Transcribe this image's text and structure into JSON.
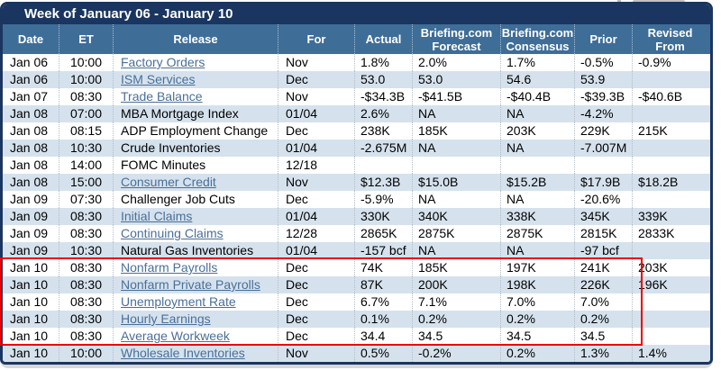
{
  "table": {
    "title": "Week of January 06 - January 10",
    "columns": [
      {
        "key": "date",
        "label": "Date"
      },
      {
        "key": "et",
        "label": "ET"
      },
      {
        "key": "release",
        "label": "Release"
      },
      {
        "key": "for",
        "label": "For"
      },
      {
        "key": "actual",
        "label": "Actual"
      },
      {
        "key": "forecast",
        "label": "Briefing.com Forecast"
      },
      {
        "key": "consensus",
        "label": "Briefing.com Consensus"
      },
      {
        "key": "prior",
        "label": "Prior"
      },
      {
        "key": "revised_from",
        "label": "Revised From"
      }
    ],
    "rows": [
      {
        "date": "Jan 06",
        "et": "10:00",
        "release": "Factory Orders",
        "is_link": true,
        "for": "Nov",
        "actual": "1.8%",
        "forecast": "2.0%",
        "consensus": "1.7%",
        "prior": "-0.5%",
        "revised_from": "-0.9%"
      },
      {
        "date": "Jan 06",
        "et": "10:00",
        "release": "ISM Services",
        "is_link": true,
        "for": "Dec",
        "actual": "53.0",
        "forecast": "53.0",
        "consensus": "54.6",
        "prior": "53.9",
        "revised_from": ""
      },
      {
        "date": "Jan 07",
        "et": "08:30",
        "release": "Trade Balance",
        "is_link": true,
        "for": "Nov",
        "actual": "-$34.3B",
        "forecast": "-$41.5B",
        "consensus": "-$40.4B",
        "prior": "-$39.3B",
        "revised_from": "-$40.6B"
      },
      {
        "date": "Jan 08",
        "et": "07:00",
        "release": "MBA Mortgage Index",
        "is_link": false,
        "for": "01/04",
        "actual": "2.6%",
        "forecast": "NA",
        "consensus": "NA",
        "prior": "-4.2%",
        "revised_from": ""
      },
      {
        "date": "Jan 08",
        "et": "08:15",
        "release": "ADP Employment Change",
        "is_link": false,
        "for": "Dec",
        "actual": "238K",
        "forecast": "185K",
        "consensus": "203K",
        "prior": "229K",
        "revised_from": "215K"
      },
      {
        "date": "Jan 08",
        "et": "10:30",
        "release": "Crude Inventories",
        "is_link": false,
        "for": "01/04",
        "actual": "-2.675M",
        "forecast": "NA",
        "consensus": "NA",
        "prior": "-7.007M",
        "revised_from": ""
      },
      {
        "date": "Jan 08",
        "et": "14:00",
        "release": "FOMC Minutes",
        "is_link": false,
        "for": "12/18",
        "actual": "",
        "forecast": "",
        "consensus": "",
        "prior": "",
        "revised_from": ""
      },
      {
        "date": "Jan 08",
        "et": "15:00",
        "release": "Consumer Credit",
        "is_link": true,
        "for": "Nov",
        "actual": "$12.3B",
        "forecast": "$15.0B",
        "consensus": "$15.2B",
        "prior": "$17.9B",
        "revised_from": "$18.2B"
      },
      {
        "date": "Jan 09",
        "et": "07:30",
        "release": "Challenger Job Cuts",
        "is_link": false,
        "for": "Dec",
        "actual": "-5.9%",
        "forecast": "NA",
        "consensus": "NA",
        "prior": "-20.6%",
        "revised_from": ""
      },
      {
        "date": "Jan 09",
        "et": "08:30",
        "release": "Initial Claims",
        "is_link": true,
        "for": "01/04",
        "actual": "330K",
        "forecast": "340K",
        "consensus": "338K",
        "prior": "345K",
        "revised_from": "339K"
      },
      {
        "date": "Jan 09",
        "et": "08:30",
        "release": "Continuing Claims",
        "is_link": true,
        "for": "12/28",
        "actual": "2865K",
        "forecast": "2875K",
        "consensus": "2875K",
        "prior": "2815K",
        "revised_from": "2833K"
      },
      {
        "date": "Jan 09",
        "et": "10:30",
        "release": "Natural Gas Inventories",
        "is_link": false,
        "for": "01/04",
        "actual": "-157 bcf",
        "forecast": "NA",
        "consensus": "NA",
        "prior": "-97 bcf",
        "revised_from": ""
      },
      {
        "date": "Jan 10",
        "et": "08:30",
        "release": "Nonfarm Payrolls",
        "is_link": true,
        "for": "Dec",
        "actual": "74K",
        "forecast": "185K",
        "consensus": "197K",
        "prior": "241K",
        "revised_from": "203K"
      },
      {
        "date": "Jan 10",
        "et": "08:30",
        "release": "Nonfarm Private Payrolls",
        "is_link": true,
        "for": "Dec",
        "actual": "87K",
        "forecast": "200K",
        "consensus": "198K",
        "prior": "226K",
        "revised_from": "196K"
      },
      {
        "date": "Jan 10",
        "et": "08:30",
        "release": "Unemployment Rate",
        "is_link": true,
        "for": "Dec",
        "actual": "6.7%",
        "forecast": "7.1%",
        "consensus": "7.0%",
        "prior": "7.0%",
        "revised_from": ""
      },
      {
        "date": "Jan 10",
        "et": "08:30",
        "release": "Hourly Earnings",
        "is_link": true,
        "for": "Dec",
        "actual": "0.1%",
        "forecast": "0.2%",
        "consensus": "0.2%",
        "prior": "0.2%",
        "revised_from": ""
      },
      {
        "date": "Jan 10",
        "et": "08:30",
        "release": "Average Workweek",
        "is_link": true,
        "for": "Dec",
        "actual": "34.4",
        "forecast": "34.5",
        "consensus": "34.5",
        "prior": "34.5",
        "revised_from": ""
      },
      {
        "date": "Jan 10",
        "et": "10:00",
        "release": "Wholesale Inventories",
        "is_link": true,
        "for": "Nov",
        "actual": "0.5%",
        "forecast": "-0.2%",
        "consensus": "0.2%",
        "prior": "1.3%",
        "revised_from": "1.4%"
      }
    ]
  },
  "highlight": {
    "color": "#ea0000",
    "first_row": "Nonfarm Payrolls",
    "last_row": "Average Workweek",
    "columns_covered": "Date through Prior"
  },
  "colors": {
    "title_bar": "#1a355f",
    "header_row": "#3e6d98",
    "alt_row": "#d5e2ed",
    "link": "#4a6f99",
    "highlight_border": "#ea0000"
  }
}
